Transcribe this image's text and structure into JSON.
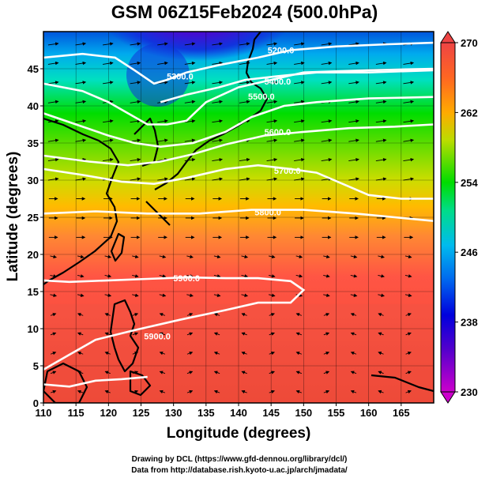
{
  "title": "GSM 06Z15Feb2024 (500.0hPa)",
  "chart_data": {
    "type": "heatmap",
    "xlabel": "Longitude (degrees)",
    "ylabel": "Latitude  (degrees)",
    "xlim": [
      110,
      170
    ],
    "ylim": [
      0,
      50
    ],
    "xticks": [
      "110",
      "115",
      "120",
      "125",
      "130",
      "135",
      "140",
      "145",
      "150",
      "155",
      "160",
      "165"
    ],
    "yticks": [
      "0",
      "5",
      "10",
      "15",
      "20",
      "25",
      "30",
      "35",
      "40",
      "45"
    ],
    "colorbar": {
      "min": 230,
      "max": 270,
      "ticks": [
        "230",
        "238",
        "246",
        "254",
        "262",
        "270"
      ],
      "colors": [
        "#cc00cc",
        "#0000dd",
        "#00bbee",
        "#00dd00",
        "#ffaa00",
        "#ee4444"
      ]
    },
    "contours": [
      {
        "label": "5200.0",
        "points": [
          [
            110,
            46.5
          ],
          [
            116,
            47
          ],
          [
            121,
            46.5
          ],
          [
            124,
            44.8
          ],
          [
            127,
            43
          ],
          [
            129,
            43.5
          ],
          [
            132,
            44.5
          ],
          [
            137,
            45.5
          ],
          [
            143,
            46.5
          ],
          [
            148,
            47.5
          ],
          [
            155,
            48
          ],
          [
            163,
            48.3
          ],
          [
            170,
            48.5
          ]
        ]
      },
      {
        "label": "5300.0",
        "points": [
          [
            110,
            43
          ],
          [
            116,
            42
          ],
          [
            120,
            40.5
          ],
          [
            123,
            39
          ],
          [
            126,
            37.5
          ],
          [
            129,
            37.5
          ],
          [
            132,
            38
          ],
          [
            135,
            40.5
          ],
          [
            140,
            42.5
          ],
          [
            145,
            43.5
          ],
          [
            150,
            44.5
          ],
          [
            160,
            44.8
          ],
          [
            170,
            45
          ]
        ]
      },
      {
        "label": "5400.0",
        "points": [
          [
            128,
            40.5
          ],
          [
            132,
            41.5
          ],
          [
            137,
            42.5
          ],
          [
            141,
            43.5
          ],
          [
            146,
            44
          ],
          [
            152,
            44.5
          ],
          [
            160,
            44.5
          ],
          [
            170,
            44.8
          ]
        ]
      },
      {
        "label": "5500.0",
        "points": [
          [
            110,
            39
          ],
          [
            115,
            37.5
          ],
          [
            120,
            36
          ],
          [
            124,
            35
          ],
          [
            128,
            34.5
          ],
          [
            133,
            35
          ],
          [
            138,
            36.5
          ],
          [
            142,
            38.5
          ],
          [
            147,
            40
          ],
          [
            152,
            40.5
          ],
          [
            160,
            41
          ],
          [
            170,
            41.2
          ]
        ]
      },
      {
        "label": "5600.0",
        "points": [
          [
            110,
            33.3
          ],
          [
            117,
            32.5
          ],
          [
            123,
            32
          ],
          [
            128,
            32.5
          ],
          [
            133,
            33.5
          ],
          [
            138,
            34.8
          ],
          [
            144,
            36
          ],
          [
            150,
            36.5
          ],
          [
            157,
            37
          ],
          [
            164,
            37.2
          ],
          [
            170,
            37.5
          ]
        ]
      },
      {
        "label": "5700.0",
        "points": [
          [
            110,
            31.5
          ],
          [
            116,
            30.7
          ],
          [
            122,
            29.8
          ],
          [
            127,
            29.5
          ],
          [
            132,
            30.3
          ],
          [
            138,
            31.5
          ],
          [
            143,
            32
          ],
          [
            148,
            31.5
          ],
          [
            152,
            31
          ],
          [
            156,
            29.5
          ],
          [
            160,
            28
          ],
          [
            165,
            27.5
          ],
          [
            170,
            27.5
          ]
        ]
      },
      {
        "label": "5800.0",
        "points": [
          [
            110,
            25.5
          ],
          [
            118,
            25.8
          ],
          [
            126,
            25.5
          ],
          [
            134,
            25.5
          ],
          [
            142,
            26
          ],
          [
            150,
            26
          ],
          [
            158,
            25.5
          ],
          [
            164,
            25
          ],
          [
            170,
            24.5
          ]
        ]
      },
      {
        "label": "5900.0",
        "points": [
          [
            110,
            16.5
          ],
          [
            114,
            16.3
          ],
          [
            120,
            16.5
          ],
          [
            126,
            16.7
          ],
          [
            132,
            16.9
          ],
          [
            138,
            16.8
          ],
          [
            143,
            16.8
          ],
          [
            148,
            16.4
          ],
          [
            150,
            15.2
          ],
          [
            148,
            13.5
          ],
          [
            143,
            13.5
          ],
          [
            138,
            12.5
          ],
          [
            131,
            11.2
          ],
          [
            124,
            9.8
          ],
          [
            118,
            8.5
          ],
          [
            114,
            6.5
          ],
          [
            110,
            4.5
          ]
        ]
      },
      {
        "label": "5900.0",
        "points": [
          [
            110,
            2.5
          ],
          [
            114,
            2.2
          ],
          [
            118,
            3
          ],
          [
            122,
            3.2
          ],
          [
            126,
            3.5
          ]
        ]
      }
    ],
    "contour_label_positions": [
      {
        "label": "5200.0",
        "lon": 146.5,
        "lat": 47.5
      },
      {
        "label": "5300.0",
        "lon": 131,
        "lat": 44
      },
      {
        "label": "5400.0",
        "lon": 146,
        "lat": 43.3
      },
      {
        "label": "5500.0",
        "lon": 143.5,
        "lat": 41.3
      },
      {
        "label": "5600.0",
        "lon": 146,
        "lat": 36.5
      },
      {
        "label": "5700.0",
        "lon": 147.5,
        "lat": 31.3
      },
      {
        "label": "5800.0",
        "lon": 144.5,
        "lat": 25.7
      },
      {
        "label": "5900.0",
        "lon": 132,
        "lat": 16.8
      },
      {
        "label": "5900.0",
        "lon": 127.5,
        "lat": 9
      }
    ]
  },
  "colors": {
    "contour": "#ffffff",
    "coast": "#000000",
    "vectors": "#000000",
    "axis": "#000000"
  },
  "credits": {
    "line1": "Drawing by DCL (https://www.gfd-dennou.org/library/dcl/)",
    "line2": "Data from http://database.rish.kyoto-u.ac.jp/arch/jmadata/"
  }
}
